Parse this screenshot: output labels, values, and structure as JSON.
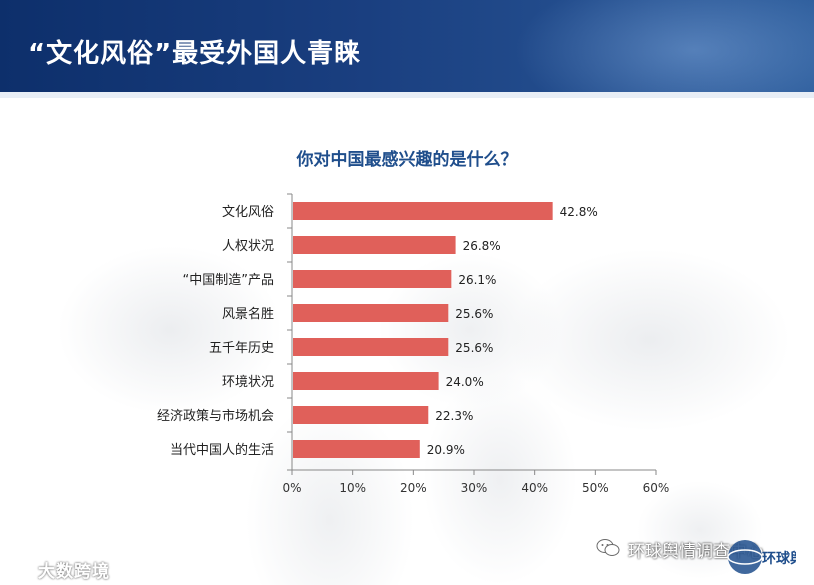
{
  "header": {
    "title": "“文化风俗”最受外国人青睐"
  },
  "chart_data": {
    "type": "bar",
    "orientation": "horizontal",
    "title": "你对中国最感兴趣的是什么？",
    "categories": [
      "文化风俗",
      "人权状况",
      "“中国制造”产品",
      "风景名胜",
      "五千年历史",
      "环境状况",
      "经济政策与市场机会",
      "当代中国人的生活"
    ],
    "values": [
      42.8,
      26.8,
      26.1,
      25.6,
      25.6,
      24.0,
      22.3,
      20.9
    ],
    "value_labels": [
      "42.8%",
      "26.8%",
      "26.1%",
      "25.6%",
      "25.6%",
      "24.0%",
      "22.3%",
      "20.9%"
    ],
    "xlim": [
      0,
      60
    ],
    "xticks": [
      "0%",
      "10%",
      "20%",
      "30%",
      "40%",
      "50%",
      "60%"
    ],
    "bar_color": "#e0605a",
    "grid": false,
    "legend": "none"
  },
  "watermarks": {
    "left": "大数跨境",
    "right": "环球舆情调查中心",
    "logo_text": "环球舆情"
  },
  "colors": {
    "header": "#0d2f6b",
    "title_blue": "#1f4e8c",
    "bar": "#e0605a"
  }
}
